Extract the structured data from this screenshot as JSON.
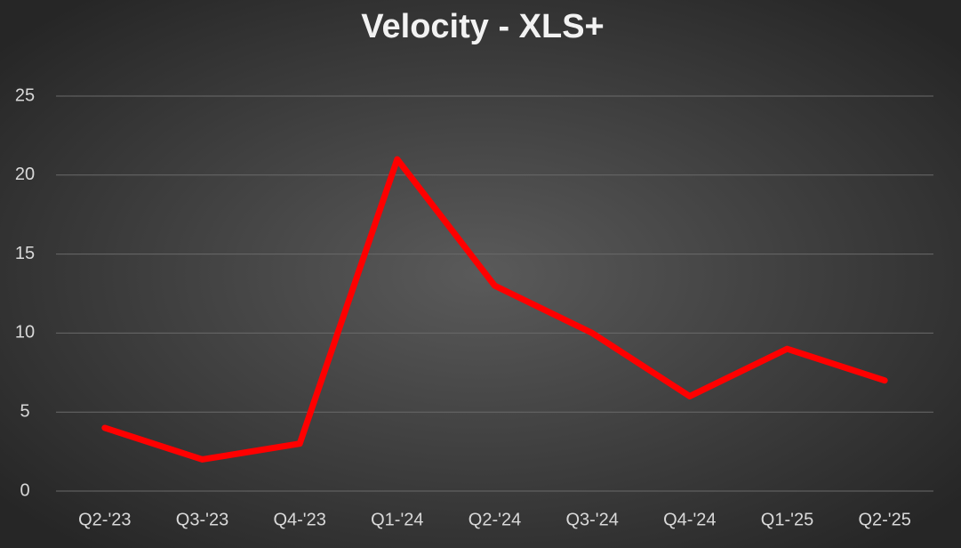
{
  "chart_data": {
    "type": "line",
    "title": "Velocity - XLS+",
    "categories": [
      "Q2-'23",
      "Q3-'23",
      "Q4-'23",
      "Q1-'24",
      "Q2-'24",
      "Q3-'24",
      "Q4-'24",
      "Q1-'25",
      "Q2-'25"
    ],
    "values": [
      4,
      2,
      3,
      21,
      13,
      10,
      6,
      9,
      7
    ],
    "color": "#ff0000",
    "ylim": [
      0,
      25
    ],
    "yticks": [
      0,
      5,
      10,
      15,
      20,
      25
    ],
    "grid": true
  }
}
